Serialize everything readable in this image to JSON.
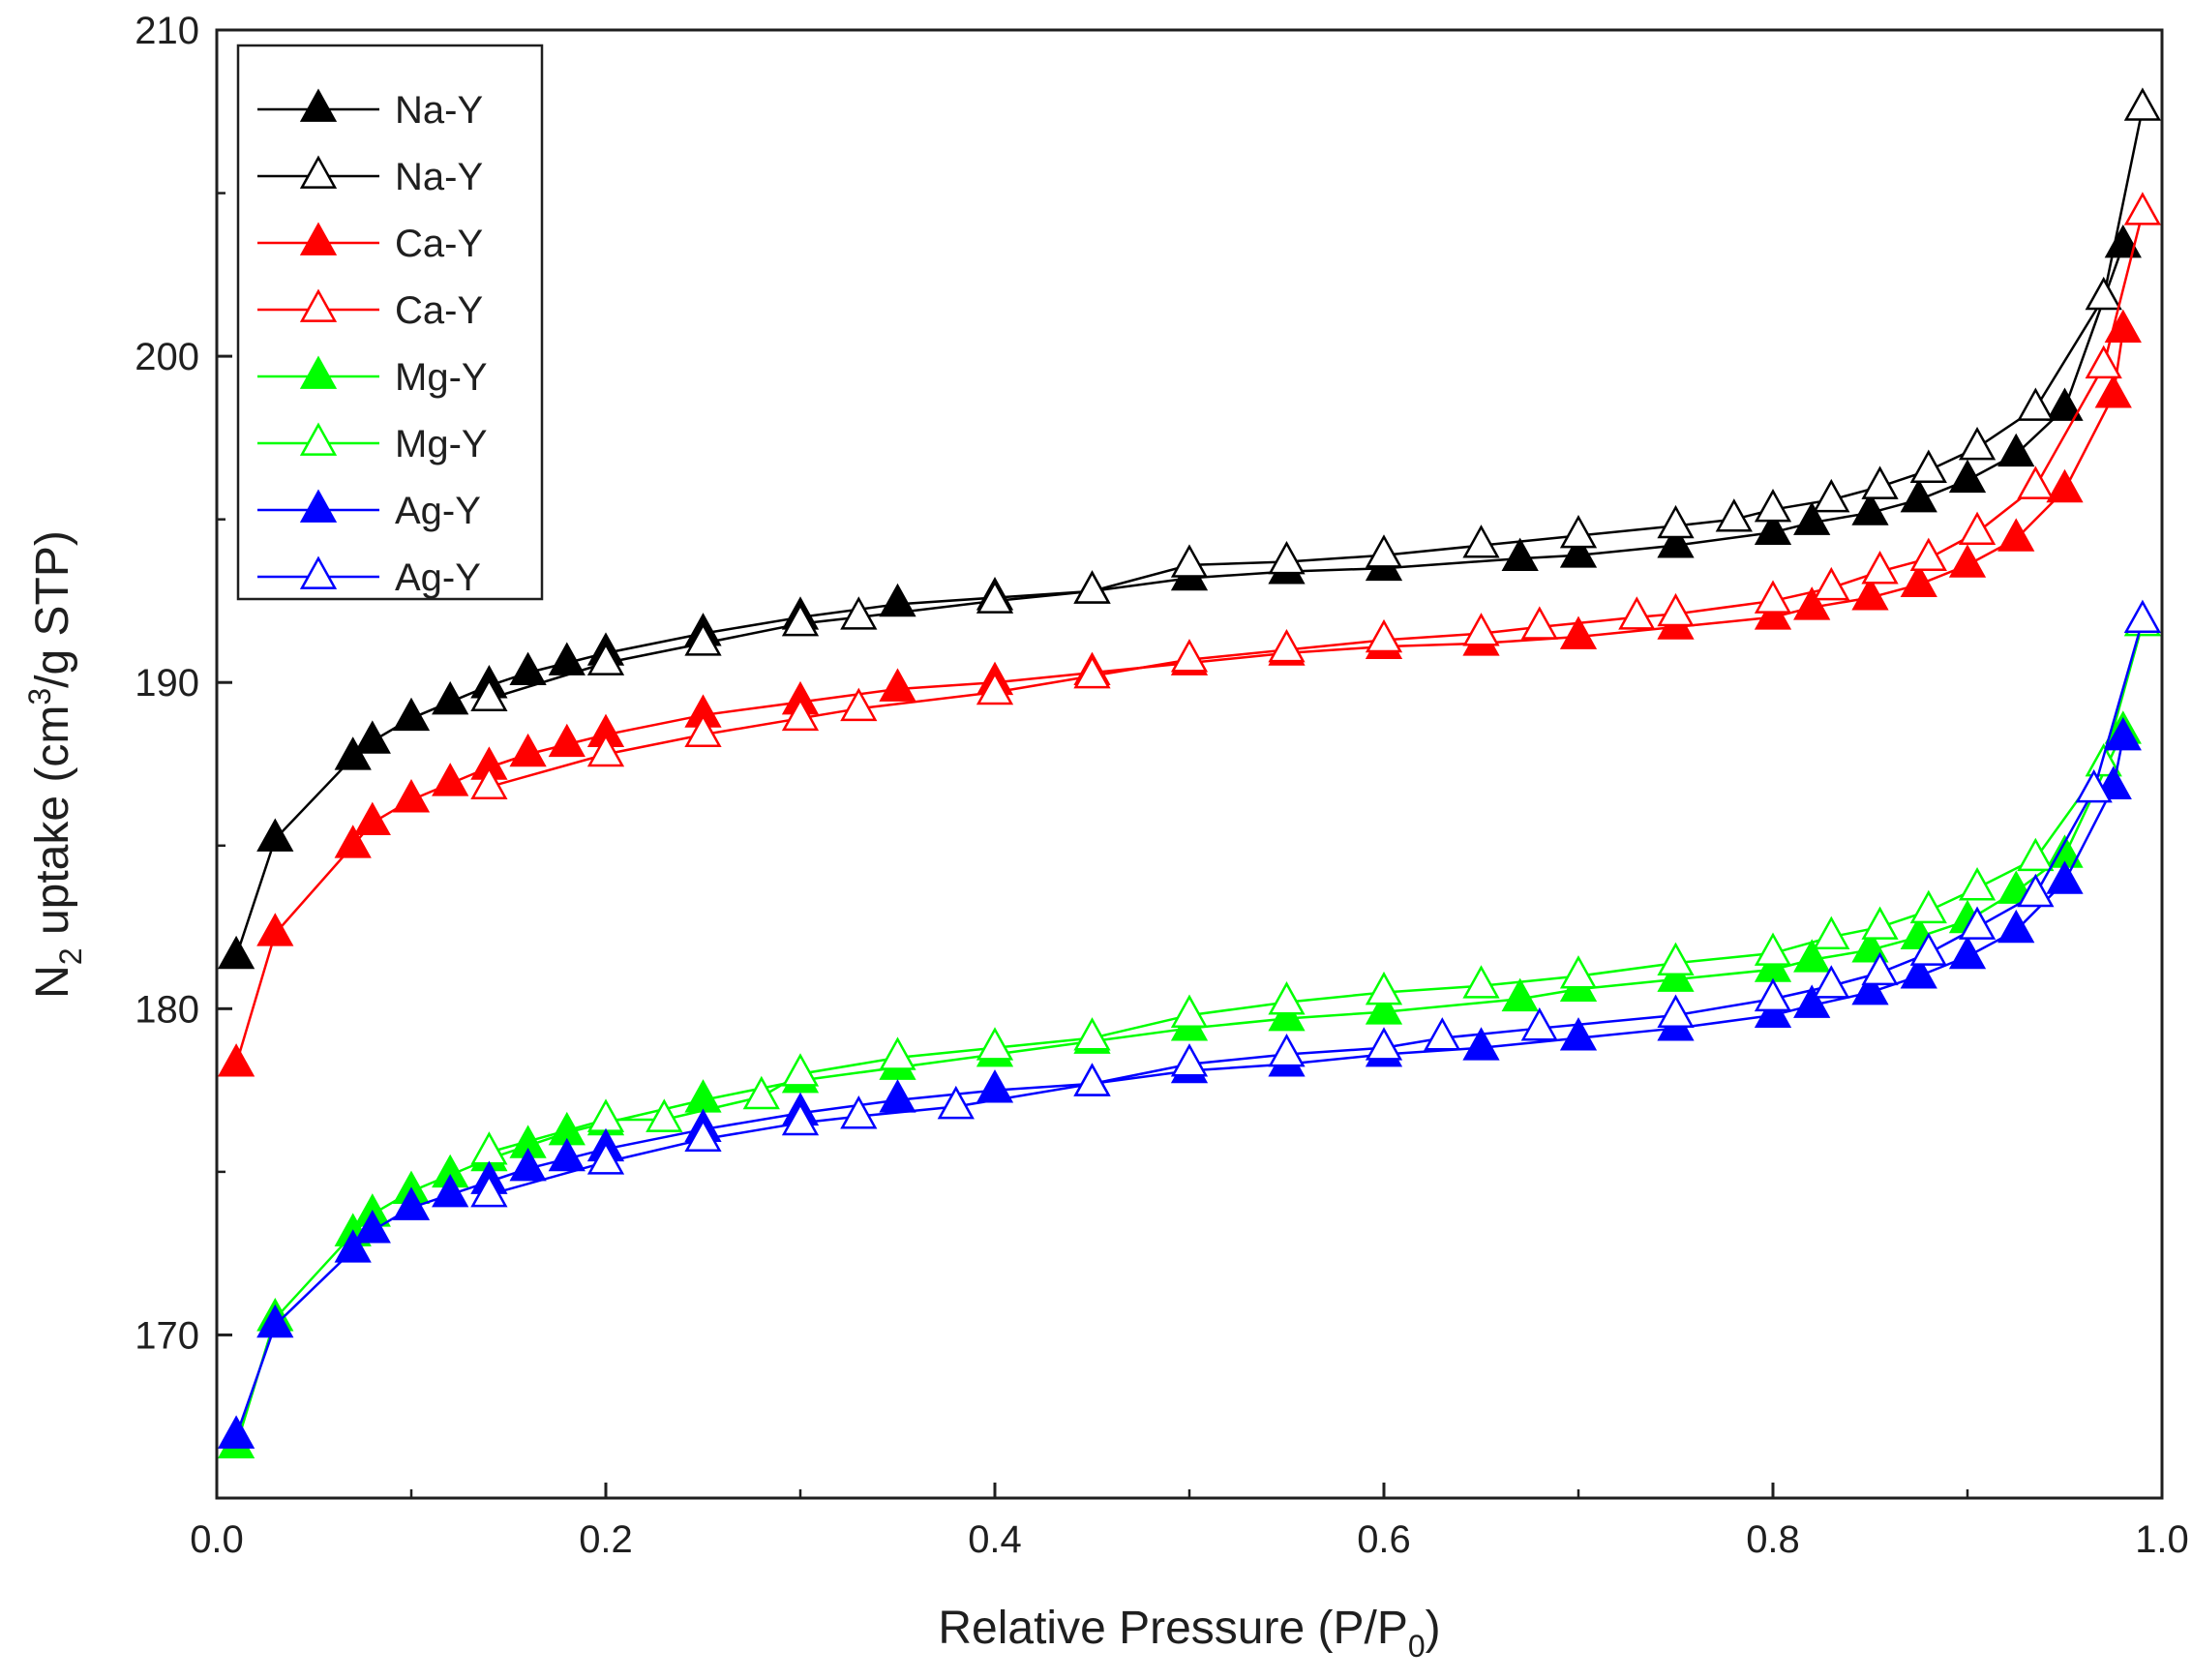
{
  "chart_data": {
    "type": "line",
    "title": "",
    "xlabel": "Relative Pressure (P/P0)",
    "xlabel_parts": {
      "main": "Relative Pressure (P/P",
      "sub": "0",
      "tail": ")"
    },
    "ylabel": "N2 uptake (cm3/g STP)",
    "ylabel_parts": {
      "a": "N",
      "sub": "2",
      "b": " uptake (cm",
      "sup": "3",
      "c": "/g STP)"
    },
    "xlim": [
      0.0,
      1.0
    ],
    "ylim": [
      165,
      210
    ],
    "xticks": [
      0.0,
      0.2,
      0.4,
      0.6,
      0.8,
      1.0
    ],
    "xtick_labels": [
      "0.0",
      "0.2",
      "0.4",
      "0.6",
      "0.8",
      "1.0"
    ],
    "yticks": [
      170,
      180,
      190,
      200,
      210
    ],
    "ytick_labels": [
      "170",
      "180",
      "190",
      "200",
      "210"
    ],
    "grid": false,
    "legend_position": "top-left",
    "series": [
      {
        "name": "Na-Y",
        "branch": "adsorption",
        "marker": "filled-triangle",
        "color": "#000000",
        "x": [
          0.01,
          0.03,
          0.07,
          0.08,
          0.1,
          0.12,
          0.14,
          0.16,
          0.18,
          0.2,
          0.25,
          0.3,
          0.35,
          0.4,
          0.45,
          0.5,
          0.55,
          0.6,
          0.67,
          0.7,
          0.75,
          0.8,
          0.82,
          0.85,
          0.875,
          0.9,
          0.925,
          0.95,
          0.98
        ],
        "y": [
          181.6,
          185.2,
          187.7,
          188.2,
          188.9,
          189.4,
          189.9,
          190.3,
          190.6,
          190.9,
          191.5,
          192.0,
          192.4,
          192.6,
          192.8,
          193.2,
          193.4,
          193.5,
          193.8,
          193.9,
          194.2,
          194.6,
          194.9,
          195.2,
          195.6,
          196.2,
          197.0,
          198.4,
          203.4
        ]
      },
      {
        "name": "Na-Y",
        "branch": "desorption",
        "marker": "open-triangle",
        "color": "#000000",
        "x": [
          0.99,
          0.97,
          0.935,
          0.905,
          0.88,
          0.855,
          0.83,
          0.8,
          0.78,
          0.75,
          0.7,
          0.65,
          0.6,
          0.55,
          0.5,
          0.45,
          0.4,
          0.33,
          0.3,
          0.25,
          0.2,
          0.14
        ],
        "y": [
          207.6,
          201.8,
          198.4,
          197.2,
          196.5,
          196.0,
          195.6,
          195.3,
          195.0,
          194.8,
          194.5,
          194.2,
          193.9,
          193.7,
          193.6,
          192.8,
          192.5,
          192.0,
          191.8,
          191.2,
          190.6,
          189.5
        ]
      },
      {
        "name": "Ca-Y",
        "branch": "adsorption",
        "marker": "filled-triangle",
        "color": "#ff0000",
        "x": [
          0.01,
          0.03,
          0.07,
          0.08,
          0.1,
          0.12,
          0.14,
          0.16,
          0.18,
          0.2,
          0.25,
          0.3,
          0.35,
          0.4,
          0.45,
          0.5,
          0.55,
          0.6,
          0.65,
          0.7,
          0.75,
          0.8,
          0.82,
          0.85,
          0.875,
          0.9,
          0.925,
          0.95,
          0.975,
          0.98
        ],
        "y": [
          178.3,
          182.3,
          185.0,
          185.7,
          186.4,
          186.9,
          187.4,
          187.8,
          188.1,
          188.4,
          189.0,
          189.4,
          189.8,
          190.0,
          190.3,
          190.6,
          190.9,
          191.1,
          191.2,
          191.4,
          191.7,
          192.0,
          192.3,
          192.6,
          193.0,
          193.6,
          194.4,
          195.9,
          198.8,
          200.8
        ]
      },
      {
        "name": "Ca-Y",
        "branch": "desorption",
        "marker": "open-triangle",
        "color": "#ff0000",
        "x": [
          0.99,
          0.97,
          0.935,
          0.905,
          0.88,
          0.855,
          0.83,
          0.8,
          0.75,
          0.73,
          0.68,
          0.65,
          0.6,
          0.55,
          0.5,
          0.45,
          0.4,
          0.33,
          0.3,
          0.25,
          0.2,
          0.14
        ],
        "y": [
          204.4,
          199.7,
          196.0,
          194.6,
          193.8,
          193.4,
          192.9,
          192.5,
          192.1,
          192.0,
          191.7,
          191.5,
          191.3,
          191.0,
          190.7,
          190.2,
          189.7,
          189.2,
          188.9,
          188.4,
          187.8,
          186.8
        ]
      },
      {
        "name": "Mg-Y",
        "branch": "adsorption",
        "marker": "filled-triangle",
        "color": "#00ff00",
        "x": [
          0.01,
          0.03,
          0.07,
          0.08,
          0.1,
          0.12,
          0.14,
          0.16,
          0.18,
          0.2,
          0.25,
          0.3,
          0.35,
          0.4,
          0.45,
          0.5,
          0.55,
          0.6,
          0.67,
          0.7,
          0.75,
          0.8,
          0.82,
          0.85,
          0.875,
          0.9,
          0.925,
          0.95,
          0.98
        ],
        "y": [
          166.6,
          170.5,
          173.1,
          173.7,
          174.4,
          174.9,
          175.4,
          175.8,
          176.2,
          176.5,
          177.2,
          177.8,
          178.2,
          178.6,
          179.0,
          179.4,
          179.7,
          179.9,
          180.3,
          180.6,
          180.9,
          181.2,
          181.5,
          181.8,
          182.2,
          182.7,
          183.6,
          184.7,
          188.5
        ]
      },
      {
        "name": "Mg-Y",
        "branch": "desorption",
        "marker": "open-triangle",
        "color": "#00ff00",
        "x": [
          0.99,
          0.97,
          0.935,
          0.905,
          0.88,
          0.855,
          0.83,
          0.8,
          0.75,
          0.7,
          0.65,
          0.6,
          0.55,
          0.5,
          0.45,
          0.4,
          0.35,
          0.3,
          0.28,
          0.23,
          0.2,
          0.14
        ],
        "y": [
          191.8,
          187.5,
          184.6,
          183.7,
          183.0,
          182.5,
          182.2,
          181.7,
          181.4,
          181.0,
          180.7,
          180.5,
          180.2,
          179.8,
          179.1,
          178.8,
          178.5,
          178.0,
          177.3,
          176.6,
          176.6,
          175.6
        ]
      },
      {
        "name": "Ag-Y",
        "branch": "adsorption",
        "marker": "filled-triangle",
        "color": "#0000ff",
        "x": [
          0.01,
          0.03,
          0.07,
          0.08,
          0.1,
          0.12,
          0.14,
          0.16,
          0.18,
          0.2,
          0.25,
          0.3,
          0.35,
          0.4,
          0.45,
          0.5,
          0.55,
          0.6,
          0.65,
          0.7,
          0.75,
          0.8,
          0.82,
          0.85,
          0.875,
          0.9,
          0.925,
          0.95,
          0.975,
          0.98
        ],
        "y": [
          166.9,
          170.3,
          172.6,
          173.2,
          173.9,
          174.3,
          174.7,
          175.1,
          175.4,
          175.7,
          176.3,
          176.8,
          177.2,
          177.5,
          177.7,
          178.1,
          178.3,
          178.6,
          178.8,
          179.1,
          179.4,
          179.8,
          180.1,
          180.5,
          181.0,
          181.6,
          182.4,
          183.9,
          186.8,
          188.3
        ]
      },
      {
        "name": "Ag-Y",
        "branch": "desorption",
        "marker": "open-triangle",
        "color": "#0000ff",
        "x": [
          0.99,
          0.965,
          0.935,
          0.905,
          0.88,
          0.855,
          0.83,
          0.8,
          0.75,
          0.68,
          0.63,
          0.6,
          0.55,
          0.5,
          0.45,
          0.38,
          0.33,
          0.3,
          0.25,
          0.2,
          0.14
        ],
        "y": [
          191.9,
          186.7,
          183.5,
          182.5,
          181.7,
          181.1,
          180.7,
          180.3,
          179.8,
          179.4,
          179.1,
          178.8,
          178.6,
          178.3,
          177.7,
          177.0,
          176.7,
          176.5,
          176.0,
          175.3,
          174.3
        ]
      }
    ]
  }
}
